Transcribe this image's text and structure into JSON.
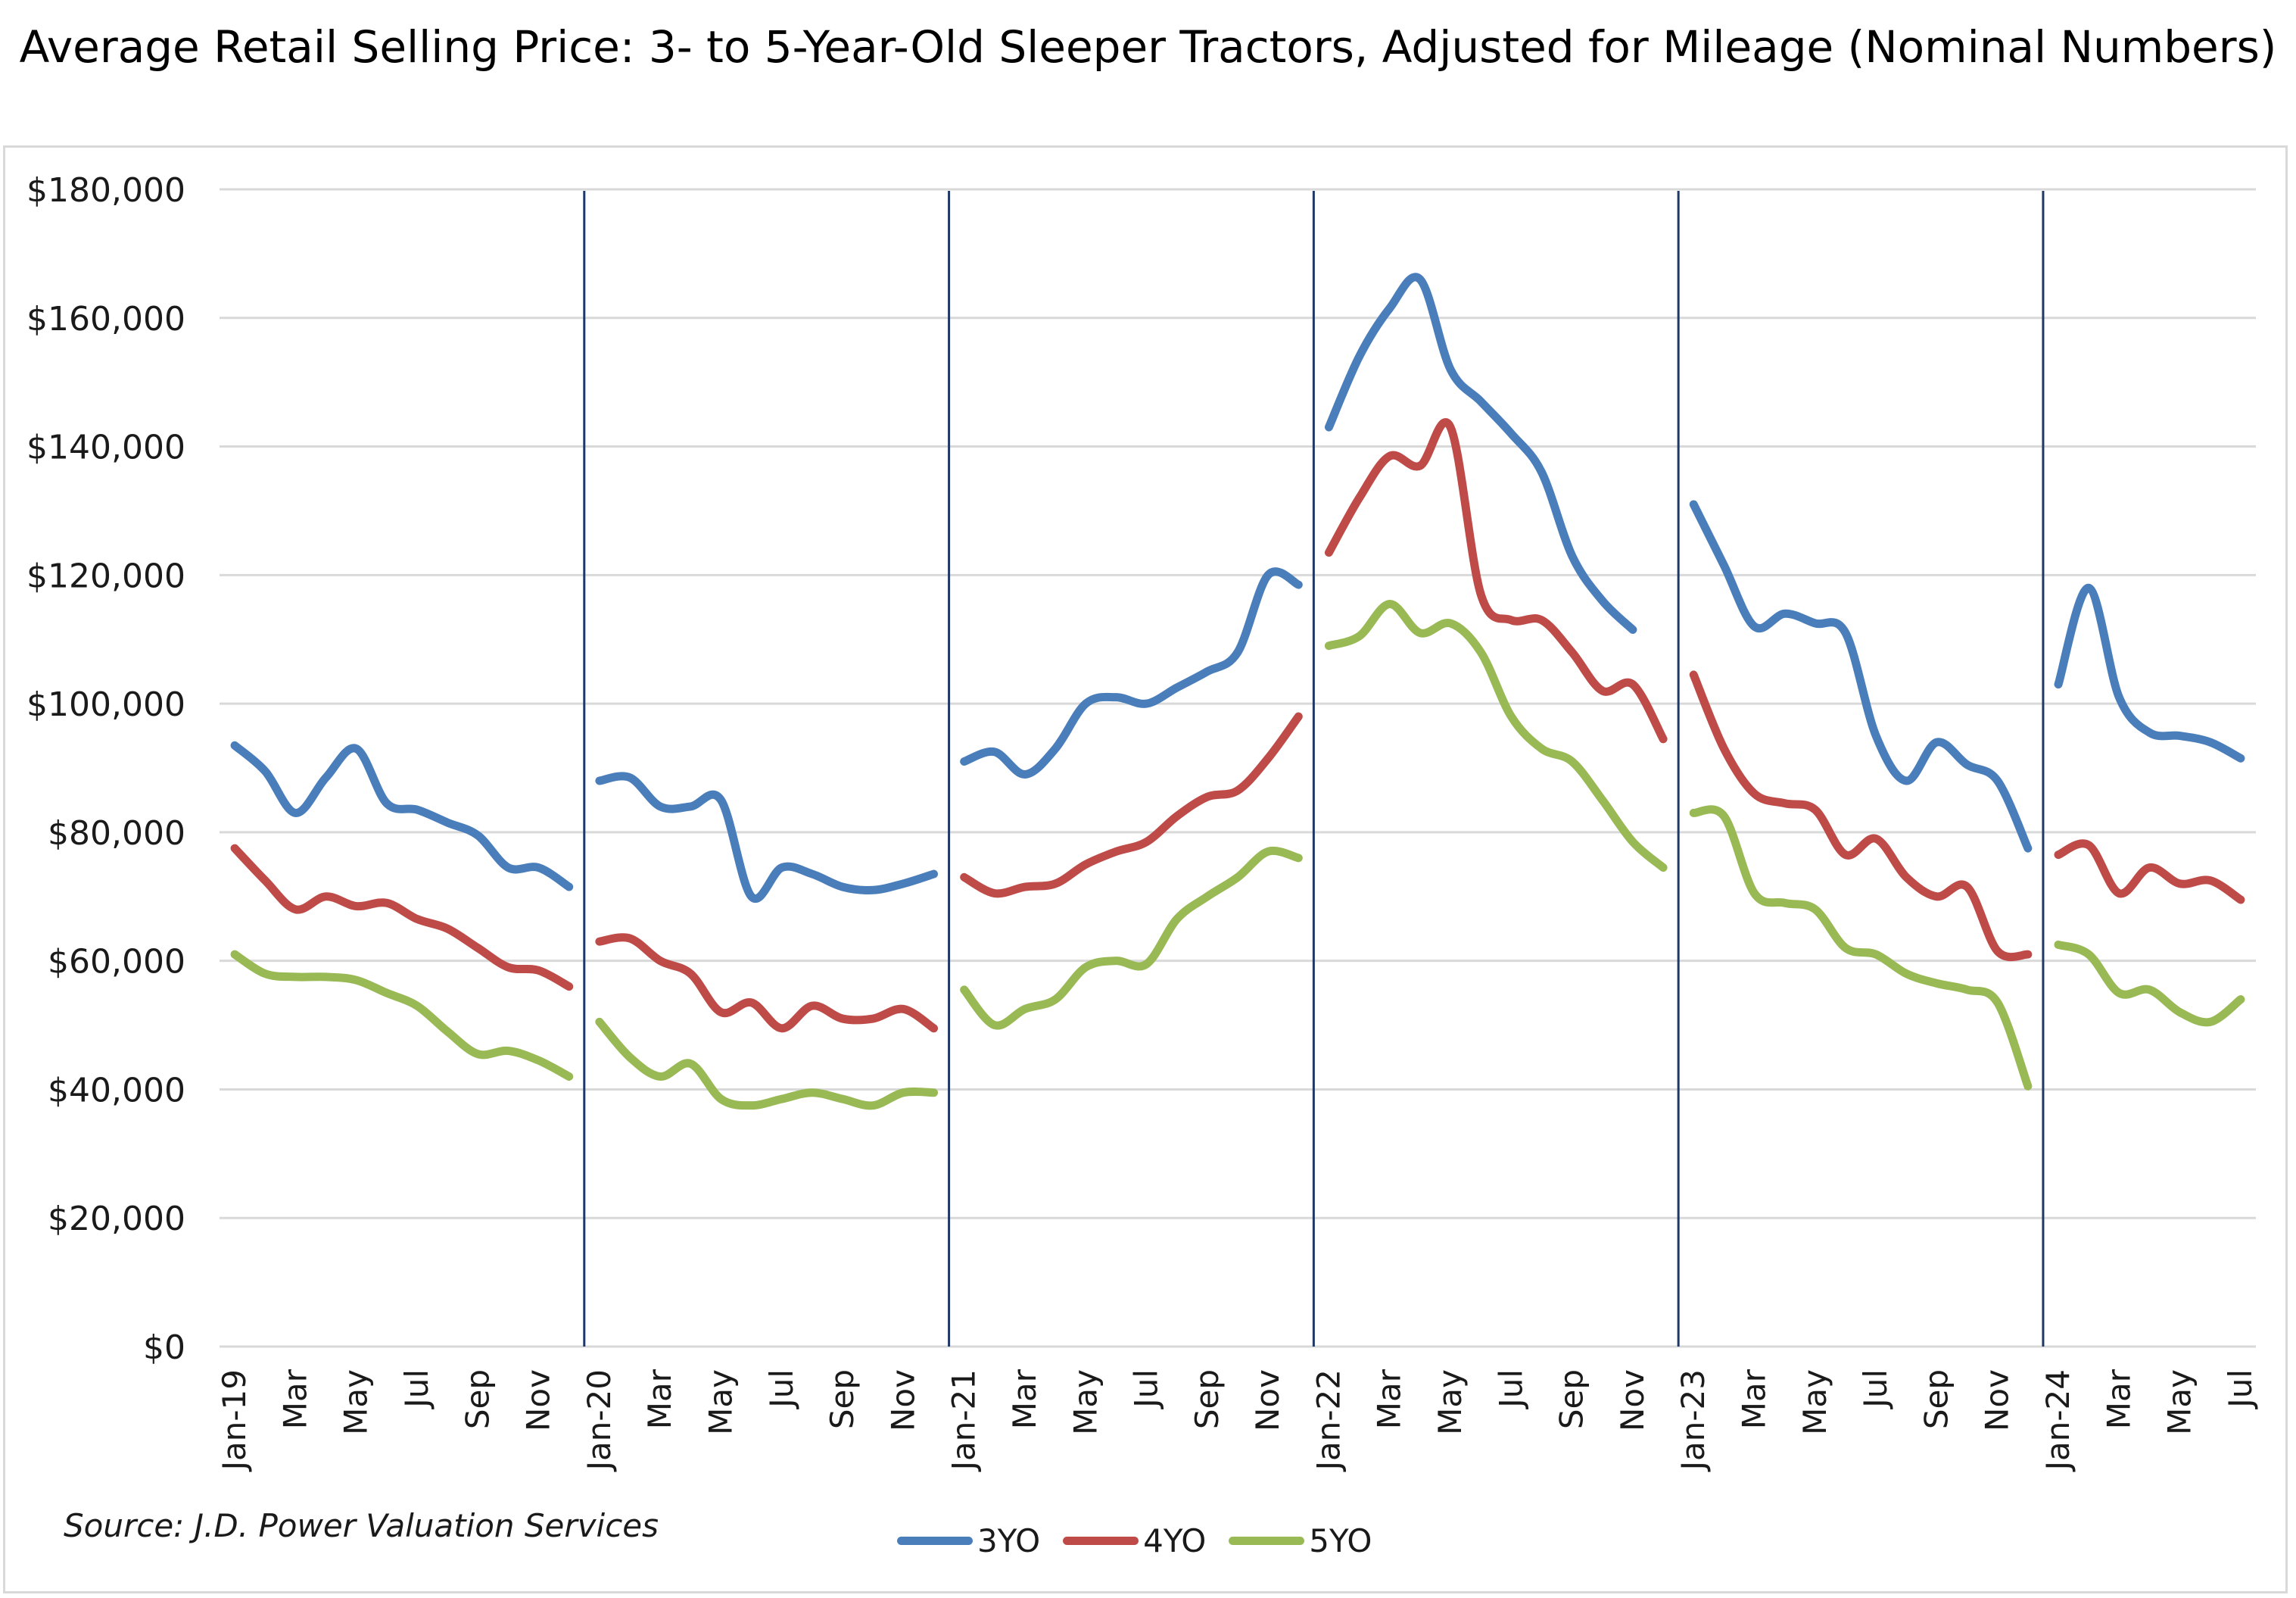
{
  "title": "Average Retail Selling Price: 3- to 5-Year-Old Sleeper Tractors, Adjusted for Mileage (Nominal Numbers)",
  "source": "Source: J.D. Power Valuation Services",
  "colors": {
    "3YO": "#4a7ebb",
    "4YO": "#be4b48",
    "5YO": "#98b954",
    "divider": "#1f3864",
    "grid": "#d9d9d9"
  },
  "chart_data": {
    "type": "line",
    "title": "Average Retail Selling Price: 3- to 5-Year-Old Sleeper Tractors, Adjusted for Mileage (Nominal Numbers)",
    "xlabel": "",
    "ylabel": "",
    "ylim": [
      0,
      180000
    ],
    "yticks": [
      "$0",
      "$20,000",
      "$40,000",
      "$60,000",
      "$80,000",
      "$100,000",
      "$120,000",
      "$140,000",
      "$160,000",
      "$180,000"
    ],
    "grid": true,
    "legend_position": "bottom",
    "note": "Vertical divider lines separate calendar years; each year is a separate line segment.",
    "x_tick_labels": [
      "Jan-19",
      "Mar",
      "May",
      "Jul",
      "Sep",
      "Nov",
      "Jan-20",
      "Mar",
      "May",
      "Jul",
      "Sep",
      "Nov",
      "Jan-21",
      "Mar",
      "May",
      "Jul",
      "Sep",
      "Nov",
      "Jan-22",
      "Mar",
      "May",
      "Jul",
      "Sep",
      "Nov",
      "Jan-23",
      "Mar",
      "May",
      "Jul",
      "Sep",
      "Nov",
      "Jan-24",
      "Mar",
      "May",
      "Jul"
    ],
    "years": [
      {
        "label": "2019",
        "months": [
          "Jan-19",
          "Feb-19",
          "Mar-19",
          "Apr-19",
          "May-19",
          "Jun-19",
          "Jul-19",
          "Aug-19",
          "Sep-19",
          "Oct-19",
          "Nov-19",
          "Dec-19"
        ]
      },
      {
        "label": "2020",
        "months": [
          "Jan-20",
          "Feb-20",
          "Mar-20",
          "Apr-20",
          "May-20",
          "Jun-20",
          "Jul-20",
          "Aug-20",
          "Sep-20",
          "Oct-20",
          "Nov-20",
          "Dec-20"
        ]
      },
      {
        "label": "2021",
        "months": [
          "Jan-21",
          "Feb-21",
          "Mar-21",
          "Apr-21",
          "May-21",
          "Jun-21",
          "Jul-21",
          "Aug-21",
          "Sep-21",
          "Oct-21",
          "Nov-21",
          "Dec-21"
        ]
      },
      {
        "label": "2022",
        "months": [
          "Jan-22",
          "Feb-22",
          "Mar-22",
          "Apr-22",
          "May-22",
          "Jun-22",
          "Jul-22",
          "Aug-22",
          "Sep-22",
          "Oct-22",
          "Nov-22",
          "Dec-22"
        ]
      },
      {
        "label": "2023",
        "months": [
          "Jan-23",
          "Feb-23",
          "Mar-23",
          "Apr-23",
          "May-23",
          "Jun-23",
          "Jul-23",
          "Aug-23",
          "Sep-23",
          "Oct-23",
          "Nov-23",
          "Dec-23"
        ]
      },
      {
        "label": "2024",
        "months": [
          "Jan-24",
          "Feb-24",
          "Mar-24",
          "Apr-24",
          "May-24",
          "Jun-24",
          "Jul-24"
        ]
      }
    ],
    "series": [
      {
        "name": "3YO",
        "values": [
          [
            93500,
            89500,
            83000,
            88500,
            93000,
            84500,
            83500,
            81500,
            79500,
            74500,
            74500,
            71500
          ],
          [
            88000,
            88500,
            84000,
            84000,
            85000,
            70000,
            74500,
            73500,
            71500,
            71000,
            72000,
            73500
          ],
          [
            91000,
            92500,
            89000,
            93000,
            100000,
            101000,
            100000,
            102500,
            105000,
            108000,
            120000,
            118500
          ],
          [
            143000,
            154000,
            161500,
            166000,
            152000,
            147000,
            142000,
            136000,
            123000,
            116000,
            111500,
            null
          ],
          [
            131000,
            121500,
            112000,
            114000,
            112500,
            111000,
            95000,
            88000,
            94000,
            90500,
            88000,
            77500
          ],
          [
            103000,
            118000,
            101000,
            95500,
            95000,
            94000,
            91500
          ]
        ]
      },
      {
        "name": "4YO",
        "values": [
          [
            77500,
            72500,
            68000,
            70000,
            68500,
            69000,
            66500,
            65000,
            62000,
            59000,
            58500,
            56000
          ],
          [
            63000,
            63500,
            60000,
            58000,
            52000,
            53500,
            49500,
            53000,
            51000,
            51000,
            52500,
            49500
          ],
          [
            73000,
            70500,
            71500,
            72000,
            75000,
            77000,
            78500,
            82500,
            85500,
            86500,
            91500,
            98000
          ],
          [
            123500,
            132000,
            138500,
            137000,
            143000,
            117000,
            113000,
            113000,
            108000,
            102000,
            103000,
            94500
          ],
          [
            104500,
            93000,
            86000,
            84500,
            83500,
            76500,
            79000,
            73000,
            70000,
            71500,
            61500,
            61000
          ],
          [
            76500,
            78000,
            70500,
            74500,
            72000,
            72500,
            69500
          ]
        ]
      },
      {
        "name": "5YO",
        "values": [
          [
            61000,
            58000,
            57500,
            57500,
            57000,
            55000,
            53000,
            49000,
            45500,
            46000,
            44500,
            42000
          ],
          [
            50500,
            45000,
            42000,
            44000,
            38500,
            37500,
            38500,
            39500,
            38500,
            37500,
            39500,
            39500
          ],
          [
            55500,
            50000,
            52500,
            54000,
            59000,
            60000,
            59500,
            66500,
            70000,
            73000,
            77000,
            76000
          ],
          [
            109000,
            110500,
            115500,
            111000,
            112500,
            108000,
            98000,
            93000,
            91000,
            85000,
            78500,
            74500
          ],
          [
            83000,
            82500,
            70500,
            69000,
            68000,
            62000,
            61000,
            58000,
            56500,
            55500,
            53500,
            40500
          ],
          [
            62500,
            61000,
            55000,
            55500,
            52000,
            50500,
            54000
          ]
        ]
      }
    ]
  }
}
